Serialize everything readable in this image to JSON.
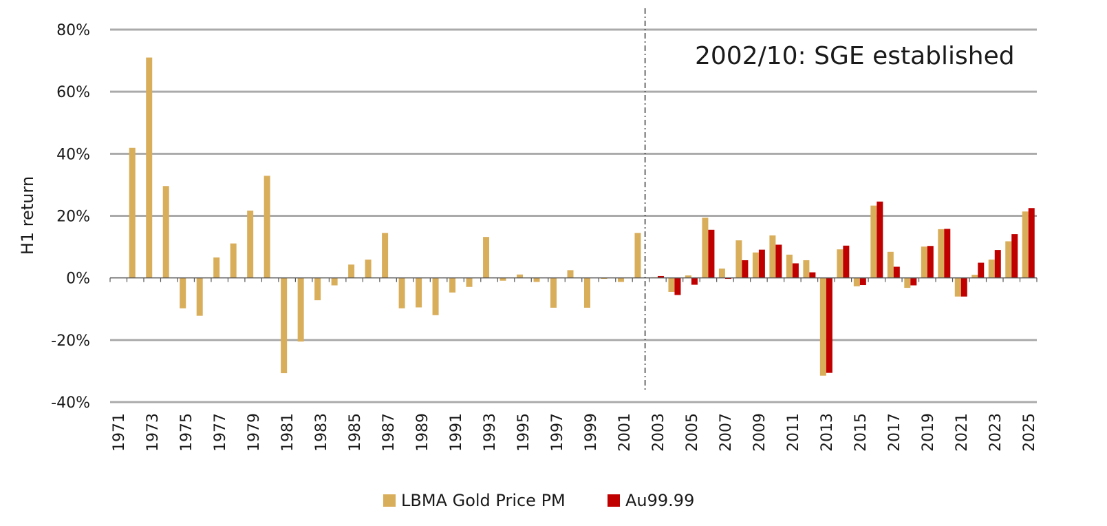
{
  "colors": {
    "lbma": "#D9AE5B",
    "au": "#C00000",
    "grid": "#AAAAAA",
    "axis": "#555555",
    "divider": "#333333"
  },
  "chart_data": {
    "type": "bar",
    "title": "",
    "xlabel": "",
    "ylabel": "H1 return",
    "ylim": [
      -40,
      80
    ],
    "yticks": [
      80,
      60,
      40,
      20,
      0,
      -20,
      -40
    ],
    "ytick_labels": [
      "80%",
      "60%",
      "40%",
      "20%",
      "0%",
      "-20%",
      "-40%"
    ],
    "categories": [
      1971,
      1972,
      1973,
      1974,
      1975,
      1976,
      1977,
      1978,
      1979,
      1980,
      1981,
      1982,
      1983,
      1984,
      1985,
      1986,
      1987,
      1988,
      1989,
      1990,
      1991,
      1992,
      1993,
      1994,
      1995,
      1996,
      1997,
      1998,
      1999,
      2000,
      2001,
      2002,
      2003,
      2004,
      2005,
      2006,
      2007,
      2008,
      2009,
      2010,
      2011,
      2012,
      2013,
      2014,
      2015,
      2016,
      2017,
      2018,
      2019,
      2020,
      2021,
      2022,
      2023,
      2024,
      2025
    ],
    "xtick_labels": [
      "1971",
      "1973",
      "1975",
      "1977",
      "1979",
      "1981",
      "1983",
      "1985",
      "1987",
      "1989",
      "1991",
      "1993",
      "1995",
      "1997",
      "1999",
      "2001",
      "2003",
      "2005",
      "2007",
      "2009",
      "2011",
      "2013",
      "2015",
      "2017",
      "2019",
      "2021",
      "2023",
      "2025"
    ],
    "series": [
      {
        "name": "LBMA Gold Price PM",
        "color": "#D9AE5B",
        "values": [
          0,
          41.9,
          71.0,
          29.6,
          -9.8,
          -12.2,
          6.6,
          11.1,
          21.7,
          32.9,
          -30.7,
          -20.5,
          -7.2,
          -2.4,
          4.3,
          5.9,
          14.5,
          -9.8,
          -9.5,
          -12.0,
          -4.7,
          -2.9,
          13.2,
          -0.9,
          1.1,
          -1.3,
          -9.6,
          2.5,
          -9.6,
          -0.3,
          -1.3,
          14.5,
          0.2,
          -4.5,
          0.8,
          19.4,
          3.0,
          12.1,
          8.2,
          13.7,
          7.5,
          5.7,
          -31.5,
          9.2,
          -2.7,
          23.3,
          8.4,
          -3.2,
          10.1,
          15.7,
          -6.0,
          1.0,
          5.9,
          11.8,
          21.4
        ]
      },
      {
        "name": "Au99.99",
        "color": "#C00000",
        "values": [
          null,
          null,
          null,
          null,
          null,
          null,
          null,
          null,
          null,
          null,
          null,
          null,
          null,
          null,
          null,
          null,
          null,
          null,
          null,
          null,
          null,
          null,
          null,
          null,
          null,
          null,
          null,
          null,
          null,
          null,
          null,
          null,
          0.6,
          -5.5,
          -2.2,
          15.5,
          -0.3,
          5.7,
          9.1,
          10.7,
          4.7,
          1.8,
          -30.6,
          10.4,
          -2.3,
          24.6,
          3.6,
          -2.4,
          10.3,
          15.8,
          -6.0,
          4.9,
          9.0,
          14.1,
          22.5
        ]
      }
    ],
    "annotation": {
      "text": "2002/10: SGE established",
      "x": 2002.75
    },
    "legend": {
      "position": "bottom-center"
    }
  }
}
